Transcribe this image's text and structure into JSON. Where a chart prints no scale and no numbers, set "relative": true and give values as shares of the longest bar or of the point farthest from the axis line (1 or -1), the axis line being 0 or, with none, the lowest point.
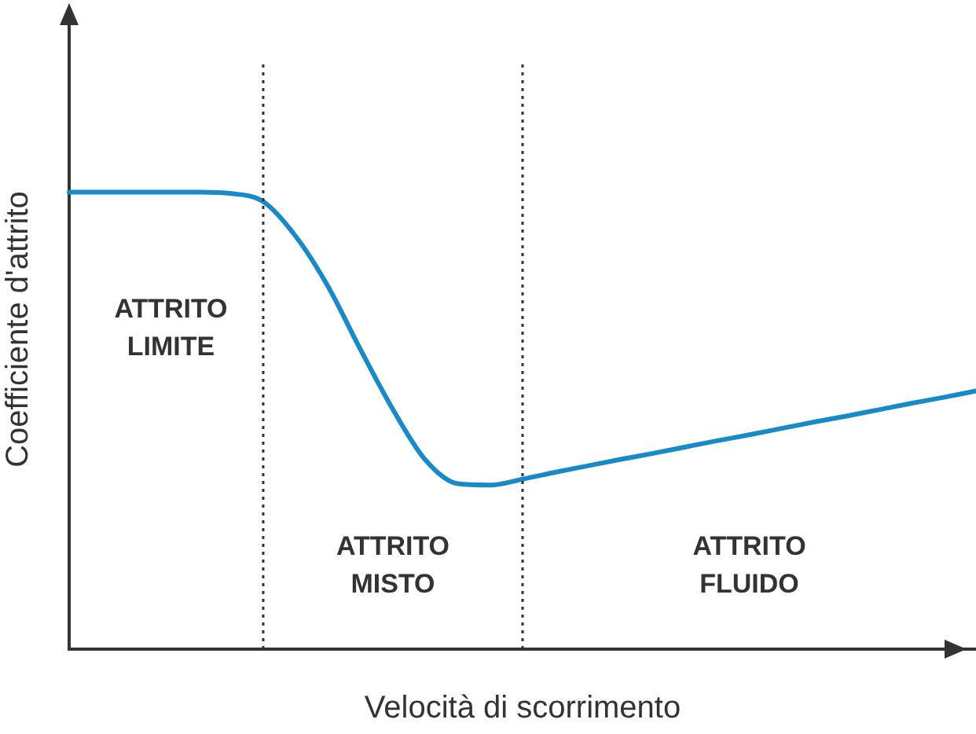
{
  "chart_data": {
    "type": "line",
    "relative": true,
    "xlabel": "Velocità di scorrimento",
    "ylabel": "Coefficiente d'attrito",
    "categories": [
      null,
      null,
      null,
      null,
      null,
      null,
      null,
      null,
      null,
      null,
      null,
      null,
      null,
      null,
      null,
      null,
      null,
      null,
      null,
      null,
      null,
      null,
      null,
      null,
      null,
      null,
      null,
      null,
      null
    ],
    "series": [
      {
        "color": "#1a8ac6",
        "values": [
          1,
          1,
          1,
          1,
          1,
          0.997,
          0.979,
          0.903,
          0.793,
          0.655,
          0.524,
          0.414,
          0.362,
          0.359,
          0.372,
          0.387,
          0.401,
          0.415,
          0.428,
          0.442,
          0.456,
          0.469,
          0.483,
          0.497,
          0.51,
          0.524,
          0.538,
          0.551,
          0.565
        ]
      }
    ],
    "annotations": [
      "ATTRITO LIMITE",
      "ATTRITO MISTO",
      "ATTRITO FLUIDO"
    ],
    "marker": "none",
    "line_style": "solid",
    "grid": false,
    "legend": false
  }
}
